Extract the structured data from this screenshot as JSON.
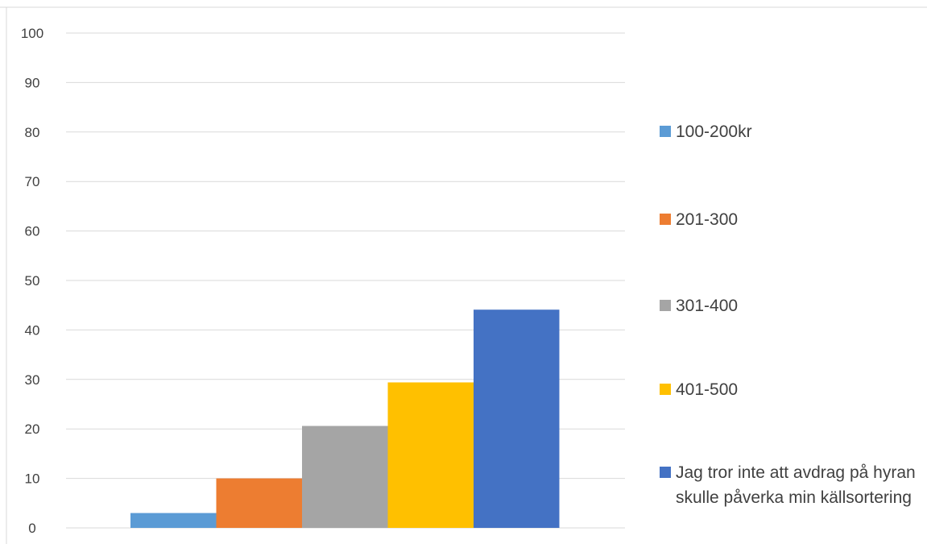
{
  "chart_data": {
    "type": "bar",
    "title": "",
    "xlabel": "",
    "ylabel": "",
    "ylim": [
      0,
      100
    ],
    "yticks": [
      0,
      10,
      20,
      30,
      40,
      50,
      60,
      70,
      80,
      90,
      100
    ],
    "grid": true,
    "legend_position": "right",
    "categories": [
      ""
    ],
    "series": [
      {
        "name": "100-200kr",
        "values": [
          3
        ],
        "color": "#5b9bd5"
      },
      {
        "name": "201-300",
        "values": [
          10
        ],
        "color": "#ed7d31"
      },
      {
        "name": "301-400",
        "values": [
          20.6
        ],
        "color": "#a5a5a5"
      },
      {
        "name": "401-500",
        "values": [
          29.4
        ],
        "color": "#ffc000"
      },
      {
        "name": "Jag tror inte att avdrag på hyran skulle påverka min källsortering",
        "values": [
          44.1
        ],
        "color": "#4472c4"
      }
    ]
  }
}
